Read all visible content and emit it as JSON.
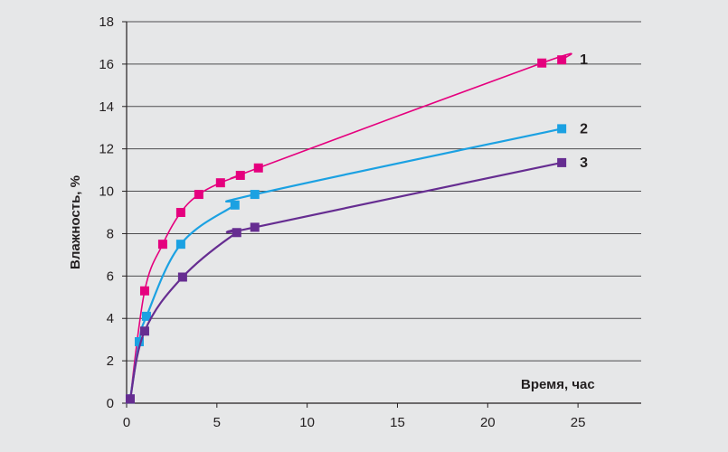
{
  "chart_data": {
    "type": "line",
    "title": "",
    "xlabel": "Время, час",
    "ylabel": "Влажность, %",
    "xlim": [
      0,
      28.5
    ],
    "ylim": [
      0,
      18
    ],
    "xticks": [
      "0",
      "5",
      "10",
      "15",
      "20",
      "25"
    ],
    "xtick_values": [
      0,
      5,
      10,
      15,
      20,
      25
    ],
    "yticks": [
      "0",
      "2",
      "4",
      "6",
      "8",
      "10",
      "12",
      "14",
      "16",
      "18"
    ],
    "ytick_values": [
      0,
      2,
      4,
      6,
      8,
      10,
      12,
      14,
      16,
      18
    ],
    "grid": "horizontal",
    "series": [
      {
        "name": "1",
        "color": "#e5007e",
        "points": [
          [
            0.2,
            0.2
          ],
          [
            1.0,
            5.3
          ],
          [
            2.0,
            7.5
          ],
          [
            3.0,
            9.0
          ],
          [
            4.0,
            9.85
          ],
          [
            5.2,
            10.4
          ],
          [
            6.3,
            10.75
          ],
          [
            7.3,
            11.1
          ],
          [
            23.0,
            16.05
          ],
          [
            24.1,
            16.2
          ]
        ]
      },
      {
        "name": "2",
        "color": "#1ba1e2",
        "points": [
          [
            0.2,
            0.2
          ],
          [
            0.7,
            2.9
          ],
          [
            1.1,
            4.1
          ],
          [
            3.0,
            7.5
          ],
          [
            6.0,
            9.35
          ],
          [
            7.1,
            9.85
          ],
          [
            24.1,
            12.95
          ]
        ]
      },
      {
        "name": "3",
        "color": "#662d91",
        "points": [
          [
            0.2,
            0.2
          ],
          [
            1.0,
            3.4
          ],
          [
            3.1,
            5.95
          ],
          [
            6.1,
            8.05
          ],
          [
            7.1,
            8.3
          ],
          [
            24.1,
            11.35
          ]
        ]
      }
    ]
  }
}
